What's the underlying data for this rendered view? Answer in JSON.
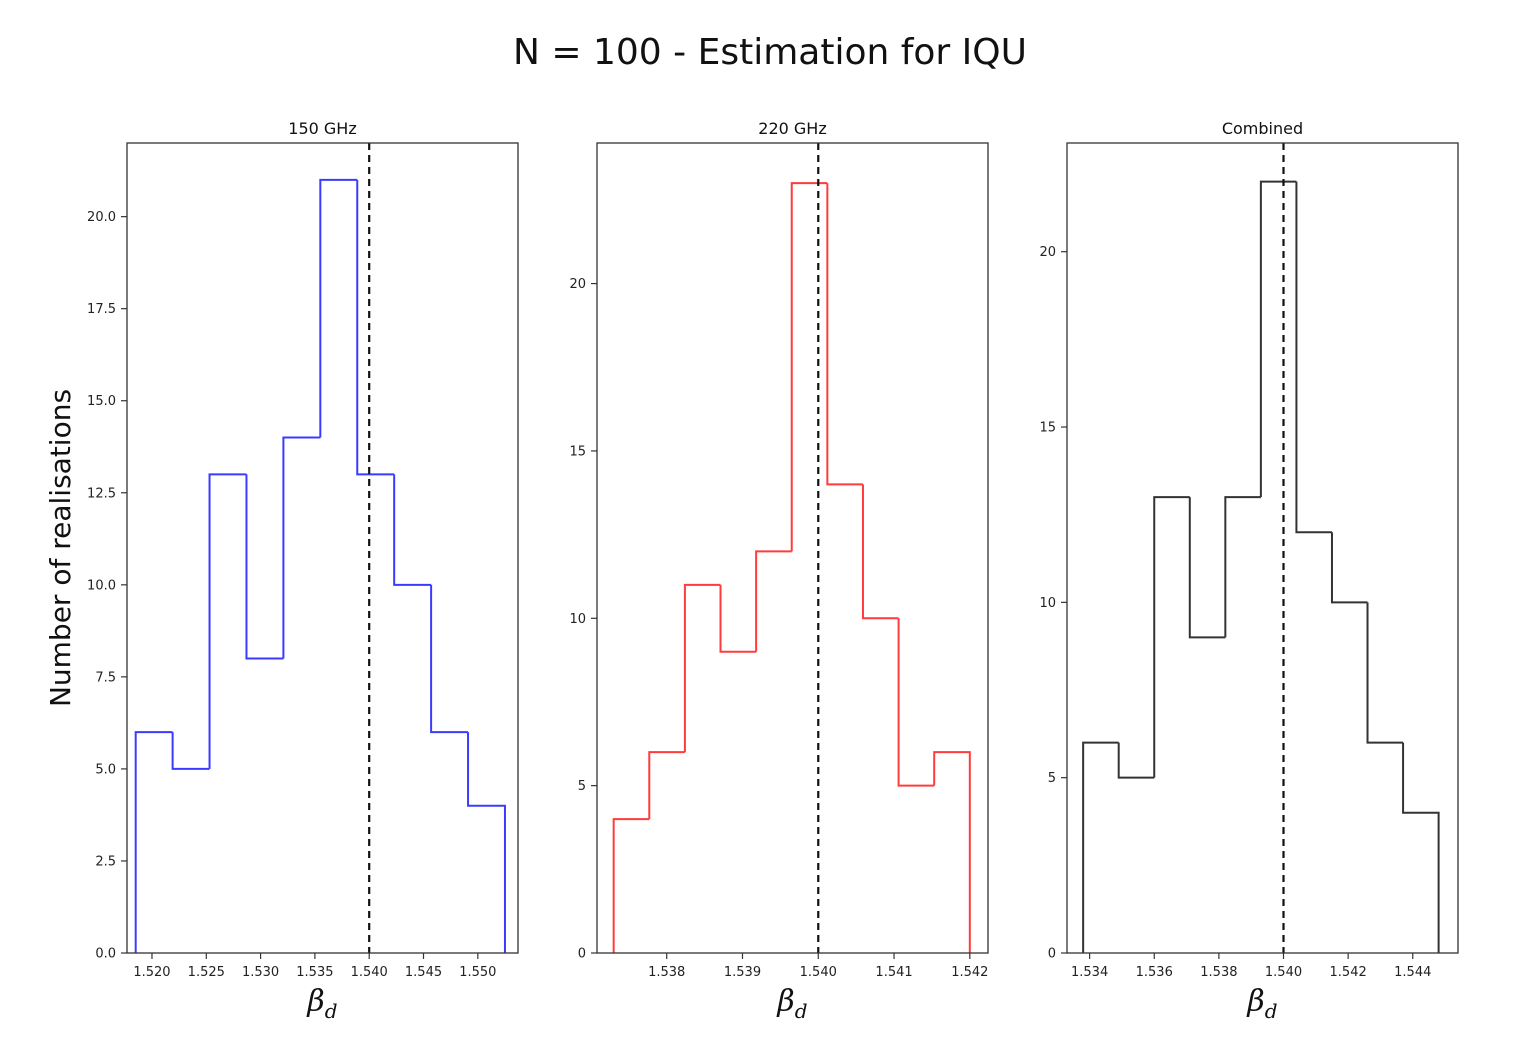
{
  "figure_title": "N = 100 - Estimation for IQU",
  "chart_data": [
    {
      "type": "histogram",
      "title": "150 GHz",
      "xlabel": "β_d",
      "xlabel_symbol": "β",
      "xlabel_sub": "d",
      "ylabel": "Number of realisations",
      "color": "#3b3bff",
      "bin_edges": [
        1.5185,
        1.5219,
        1.5253,
        1.5287,
        1.5321,
        1.5355,
        1.5389,
        1.5423,
        1.5457,
        1.5491,
        1.5525
      ],
      "counts": [
        6,
        5,
        13,
        8,
        14,
        21,
        13,
        10,
        6,
        4
      ],
      "xlim": [
        1.5177,
        1.5537
      ],
      "ylim": [
        0,
        22
      ],
      "xticks": [
        1.52,
        1.525,
        1.53,
        1.535,
        1.54,
        1.545,
        1.55
      ],
      "xtick_labels": [
        "1.520",
        "1.525",
        "1.530",
        "1.535",
        "1.540",
        "1.545",
        "1.550"
      ],
      "yticks": [
        0,
        2.5,
        5,
        7.5,
        10,
        12.5,
        15,
        17.5,
        20
      ],
      "ytick_labels": [
        "0.0",
        "2.5",
        "5.0",
        "7.5",
        "10.0",
        "12.5",
        "15.0",
        "17.5",
        "20.0"
      ],
      "reference_line": 1.54,
      "grid": false
    },
    {
      "type": "histogram",
      "title": "220 GHz",
      "xlabel": "β_d",
      "xlabel_symbol": "β",
      "xlabel_sub": "d",
      "ylabel": "",
      "color": "#ff3b3b",
      "bin_edges": [
        1.5373,
        1.53777,
        1.53824,
        1.53871,
        1.53918,
        1.53965,
        1.54012,
        1.54059,
        1.54106,
        1.54153,
        1.542
      ],
      "counts": [
        4,
        6,
        11,
        9,
        12,
        23,
        14,
        10,
        5,
        6
      ],
      "xlim": [
        1.53708,
        1.54224
      ],
      "ylim": [
        0,
        24.2
      ],
      "xticks": [
        1.538,
        1.539,
        1.54,
        1.541,
        1.542
      ],
      "xtick_labels": [
        "1.538",
        "1.539",
        "1.540",
        "1.541",
        "1.542"
      ],
      "yticks": [
        0,
        5,
        10,
        15,
        20
      ],
      "ytick_labels": [
        "0",
        "5",
        "10",
        "15",
        "20"
      ],
      "reference_line": 1.54,
      "grid": false
    },
    {
      "type": "histogram",
      "title": "Combined",
      "xlabel": "β_d",
      "xlabel_symbol": "β",
      "xlabel_sub": "d",
      "ylabel": "",
      "color": "#333333",
      "bin_edges": [
        1.5338,
        1.5349,
        1.536,
        1.5371,
        1.5382,
        1.5393,
        1.5404,
        1.5415,
        1.5426,
        1.5437,
        1.5448
      ],
      "counts": [
        6,
        5,
        13,
        9,
        13,
        22,
        12,
        10,
        6,
        4
      ],
      "xlim": [
        1.5333,
        1.5454
      ],
      "ylim": [
        0,
        23.1
      ],
      "xticks": [
        1.534,
        1.536,
        1.538,
        1.54,
        1.542,
        1.544
      ],
      "xtick_labels": [
        "1.534",
        "1.536",
        "1.538",
        "1.540",
        "1.542",
        "1.544"
      ],
      "yticks": [
        0,
        5,
        10,
        15,
        20
      ],
      "ytick_labels": [
        "0",
        "5",
        "10",
        "15",
        "20"
      ],
      "reference_line": 1.54,
      "grid": false
    }
  ]
}
